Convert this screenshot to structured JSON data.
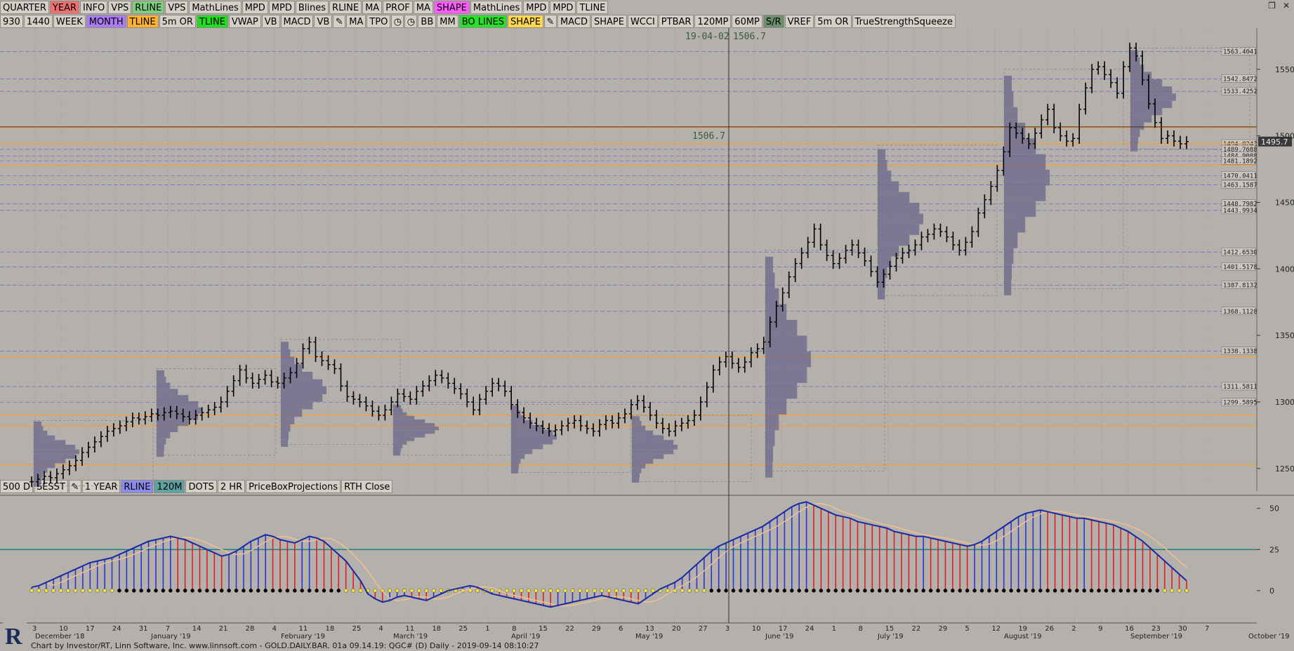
{
  "toolbar1": [
    "QUARTER",
    "YEAR",
    "INFO",
    "VPS",
    "RLINE",
    "VPS",
    "MathLines",
    "MPD",
    "MPD",
    "Blines",
    "RLINE",
    "MA",
    "PROF",
    "MA",
    "SHAPE",
    "MathLines",
    "MPD",
    "MPD",
    "TLINE"
  ],
  "toolbar1_colors": [
    "",
    "red",
    "",
    "",
    "green",
    "",
    "",
    "",
    "",
    "",
    "",
    "",
    "",
    "",
    "mag",
    "",
    "",
    "",
    ""
  ],
  "toolbar2": [
    "930",
    "1440",
    "WEEK",
    "MONTH",
    "TLINE",
    "5m OR",
    "TLINE",
    "VWAP",
    "VB",
    "MACD",
    "VB",
    "pencil-icon",
    "MA",
    "TPO",
    "clock-icon",
    "clock-icon",
    "BB",
    "MM",
    "BO LINES",
    "SHAPE",
    "pencil-icon",
    "MACD",
    "SHAPE",
    "WCCI",
    "PTBAR",
    "120MP",
    "60MP",
    "S/R",
    "VREF",
    "5m OR",
    "TrueStrengthSqueeze"
  ],
  "toolbar2_colors": [
    "",
    "",
    "",
    "purp",
    "org",
    "",
    "grn2",
    "",
    "",
    "",
    "",
    "ico",
    "",
    "",
    "ico",
    "ico",
    "",
    "",
    "grn3",
    "yel",
    "ico",
    "",
    "",
    "",
    "",
    "",
    "",
    "sr",
    "",
    "",
    ""
  ],
  "toolbar3": [
    "500 D",
    "SESST",
    "pencil-icon",
    "1 YEAR",
    "RLINE",
    "120M",
    "DOTS",
    "2 HR",
    "PriceBoxProjections",
    "RTH Close"
  ],
  "toolbar3_colors": [
    "",
    "",
    "ico",
    "",
    "blu",
    "teal",
    "",
    "",
    "",
    ""
  ],
  "crosshair": {
    "date_label": "19-04-02",
    "price_label": "1506.7",
    "price_left": "1506.7"
  },
  "footer": "Chart by Investor/RT, Linn Software, Inc. www.linnsoft.com - GOLD.DAILY.BAR. 01a    09.14.19: QGC# (D) Daily - 2019-09-14 08:10:27",
  "chart_data": {
    "type": "line",
    "title": "",
    "price_axis": {
      "ticks": [
        1250,
        1300,
        1350,
        1400,
        1450,
        1500,
        1550
      ],
      "range": [
        1233,
        1581
      ]
    },
    "current_price": "1495.7",
    "level_labels": [
      "1563.4041",
      "1542.8472",
      "1533.4252",
      "1494.0243",
      "1489.7688",
      "1484.9088",
      "1481.1892",
      "1470.0411",
      "1463.1587",
      "1448.7982",
      "1443.9934",
      "1412.6530",
      "1401.5178",
      "1387.8132",
      "1368.1128",
      "1338.1338",
      "1311.5811",
      "1299.5895"
    ],
    "levels": [
      1563.4041,
      1542.8472,
      1533.4252,
      1494.0243,
      1489.7688,
      1484.9088,
      1481.1892,
      1470.0411,
      1463.1587,
      1448.7982,
      1443.9934,
      1412.653,
      1401.5178,
      1387.8132,
      1368.1128,
      1338.1338,
      1311.5811,
      1299.5895
    ],
    "x_axis": {
      "day_ticks": [
        "3",
        "10",
        "17",
        "24",
        "31",
        "7",
        "14",
        "21",
        "28",
        "4",
        "11",
        "18",
        "25",
        "4",
        "11",
        "18",
        "25",
        "1",
        "8",
        "15",
        "22",
        "29",
        "6",
        "13",
        "20",
        "27",
        "3",
        "10",
        "17",
        "24",
        "1",
        "8",
        "15",
        "22",
        "29",
        "5",
        "12",
        "19",
        "26",
        "2",
        "9",
        "16",
        "23",
        "30",
        "7"
      ],
      "months": [
        "December '18",
        "January '19",
        "February '19",
        "March '19",
        "April '19",
        "May '19",
        "June '19",
        "July '19",
        "August '19",
        "September '19",
        "October '19"
      ]
    },
    "price_series": [
      1240,
      1242,
      1244,
      1243,
      1246,
      1249,
      1252,
      1256,
      1262,
      1266,
      1270,
      1274,
      1278,
      1280,
      1282,
      1285,
      1288,
      1287,
      1289,
      1291,
      1290,
      1292,
      1293,
      1291,
      1289,
      1287,
      1290,
      1292,
      1294,
      1296,
      1300,
      1308,
      1316,
      1324,
      1318,
      1314,
      1317,
      1320,
      1315,
      1314,
      1318,
      1322,
      1329,
      1340,
      1345,
      1334,
      1331,
      1328,
      1325,
      1312,
      1304,
      1302,
      1300,
      1297,
      1293,
      1290,
      1294,
      1300,
      1306,
      1304,
      1302,
      1308,
      1312,
      1316,
      1320,
      1318,
      1314,
      1310,
      1306,
      1300,
      1294,
      1302,
      1308,
      1314,
      1312,
      1308,
      1298,
      1292,
      1288,
      1284,
      1282,
      1280,
      1278,
      1279,
      1282,
      1284,
      1286,
      1282,
      1280,
      1278,
      1283,
      1286,
      1284,
      1288,
      1291,
      1298,
      1301,
      1296,
      1290,
      1284,
      1280,
      1278,
      1282,
      1284,
      1286,
      1290,
      1300,
      1311,
      1324,
      1330,
      1334,
      1329,
      1326,
      1330,
      1337,
      1340,
      1345,
      1360,
      1372,
      1382,
      1394,
      1404,
      1412,
      1420,
      1430,
      1418,
      1410,
      1404,
      1408,
      1414,
      1418,
      1412,
      1406,
      1398,
      1390,
      1396,
      1402,
      1408,
      1412,
      1414,
      1418,
      1424,
      1426,
      1430,
      1428,
      1424,
      1418,
      1414,
      1420,
      1428,
      1442,
      1452,
      1462,
      1474,
      1488,
      1506,
      1502,
      1498,
      1494,
      1502,
      1512,
      1520,
      1506,
      1500,
      1496,
      1498,
      1520,
      1536,
      1550,
      1552,
      1546,
      1540,
      1532,
      1552,
      1566,
      1560,
      1542,
      1524,
      1510,
      1498,
      1500,
      1496,
      1494,
      1495.7
    ],
    "oscillator": {
      "axis_ticks": [
        0,
        25,
        50
      ],
      "reference_level": 25,
      "values": [
        2,
        3,
        5,
        7,
        9,
        11,
        13,
        15,
        17,
        18,
        19,
        20,
        22,
        24,
        26,
        28,
        30,
        31,
        32,
        33,
        32,
        31,
        29,
        27,
        25,
        23,
        21,
        22,
        24,
        27,
        30,
        32,
        34,
        33,
        31,
        30,
        29,
        31,
        33,
        32,
        30,
        26,
        22,
        18,
        12,
        6,
        -2,
        -5,
        -7,
        -6,
        -4,
        -3,
        -4,
        -5,
        -6,
        -4,
        -2,
        0,
        1,
        2,
        3,
        2,
        0,
        -2,
        -3,
        -4,
        -5,
        -6,
        -7,
        -8,
        -9,
        -10,
        -9,
        -8,
        -7,
        -6,
        -5,
        -4,
        -3,
        -4,
        -5,
        -6,
        -7,
        -8,
        -5,
        -2,
        1,
        3,
        5,
        8,
        12,
        16,
        20,
        24,
        27,
        29,
        31,
        33,
        35,
        37,
        39,
        42,
        45,
        48,
        51,
        53,
        54,
        52,
        50,
        48,
        46,
        45,
        44,
        42,
        41,
        40,
        39,
        38,
        36,
        35,
        34,
        33,
        33,
        32,
        31,
        30,
        29,
        28,
        27,
        28,
        30,
        33,
        36,
        39,
        42,
        45,
        47,
        48,
        49,
        48,
        47,
        46,
        45,
        44,
        44,
        43,
        42,
        41,
        40,
        38,
        36,
        33,
        30,
        26,
        22,
        18,
        14,
        10,
        6
      ],
      "colors_note": "blue rising, red falling"
    }
  }
}
